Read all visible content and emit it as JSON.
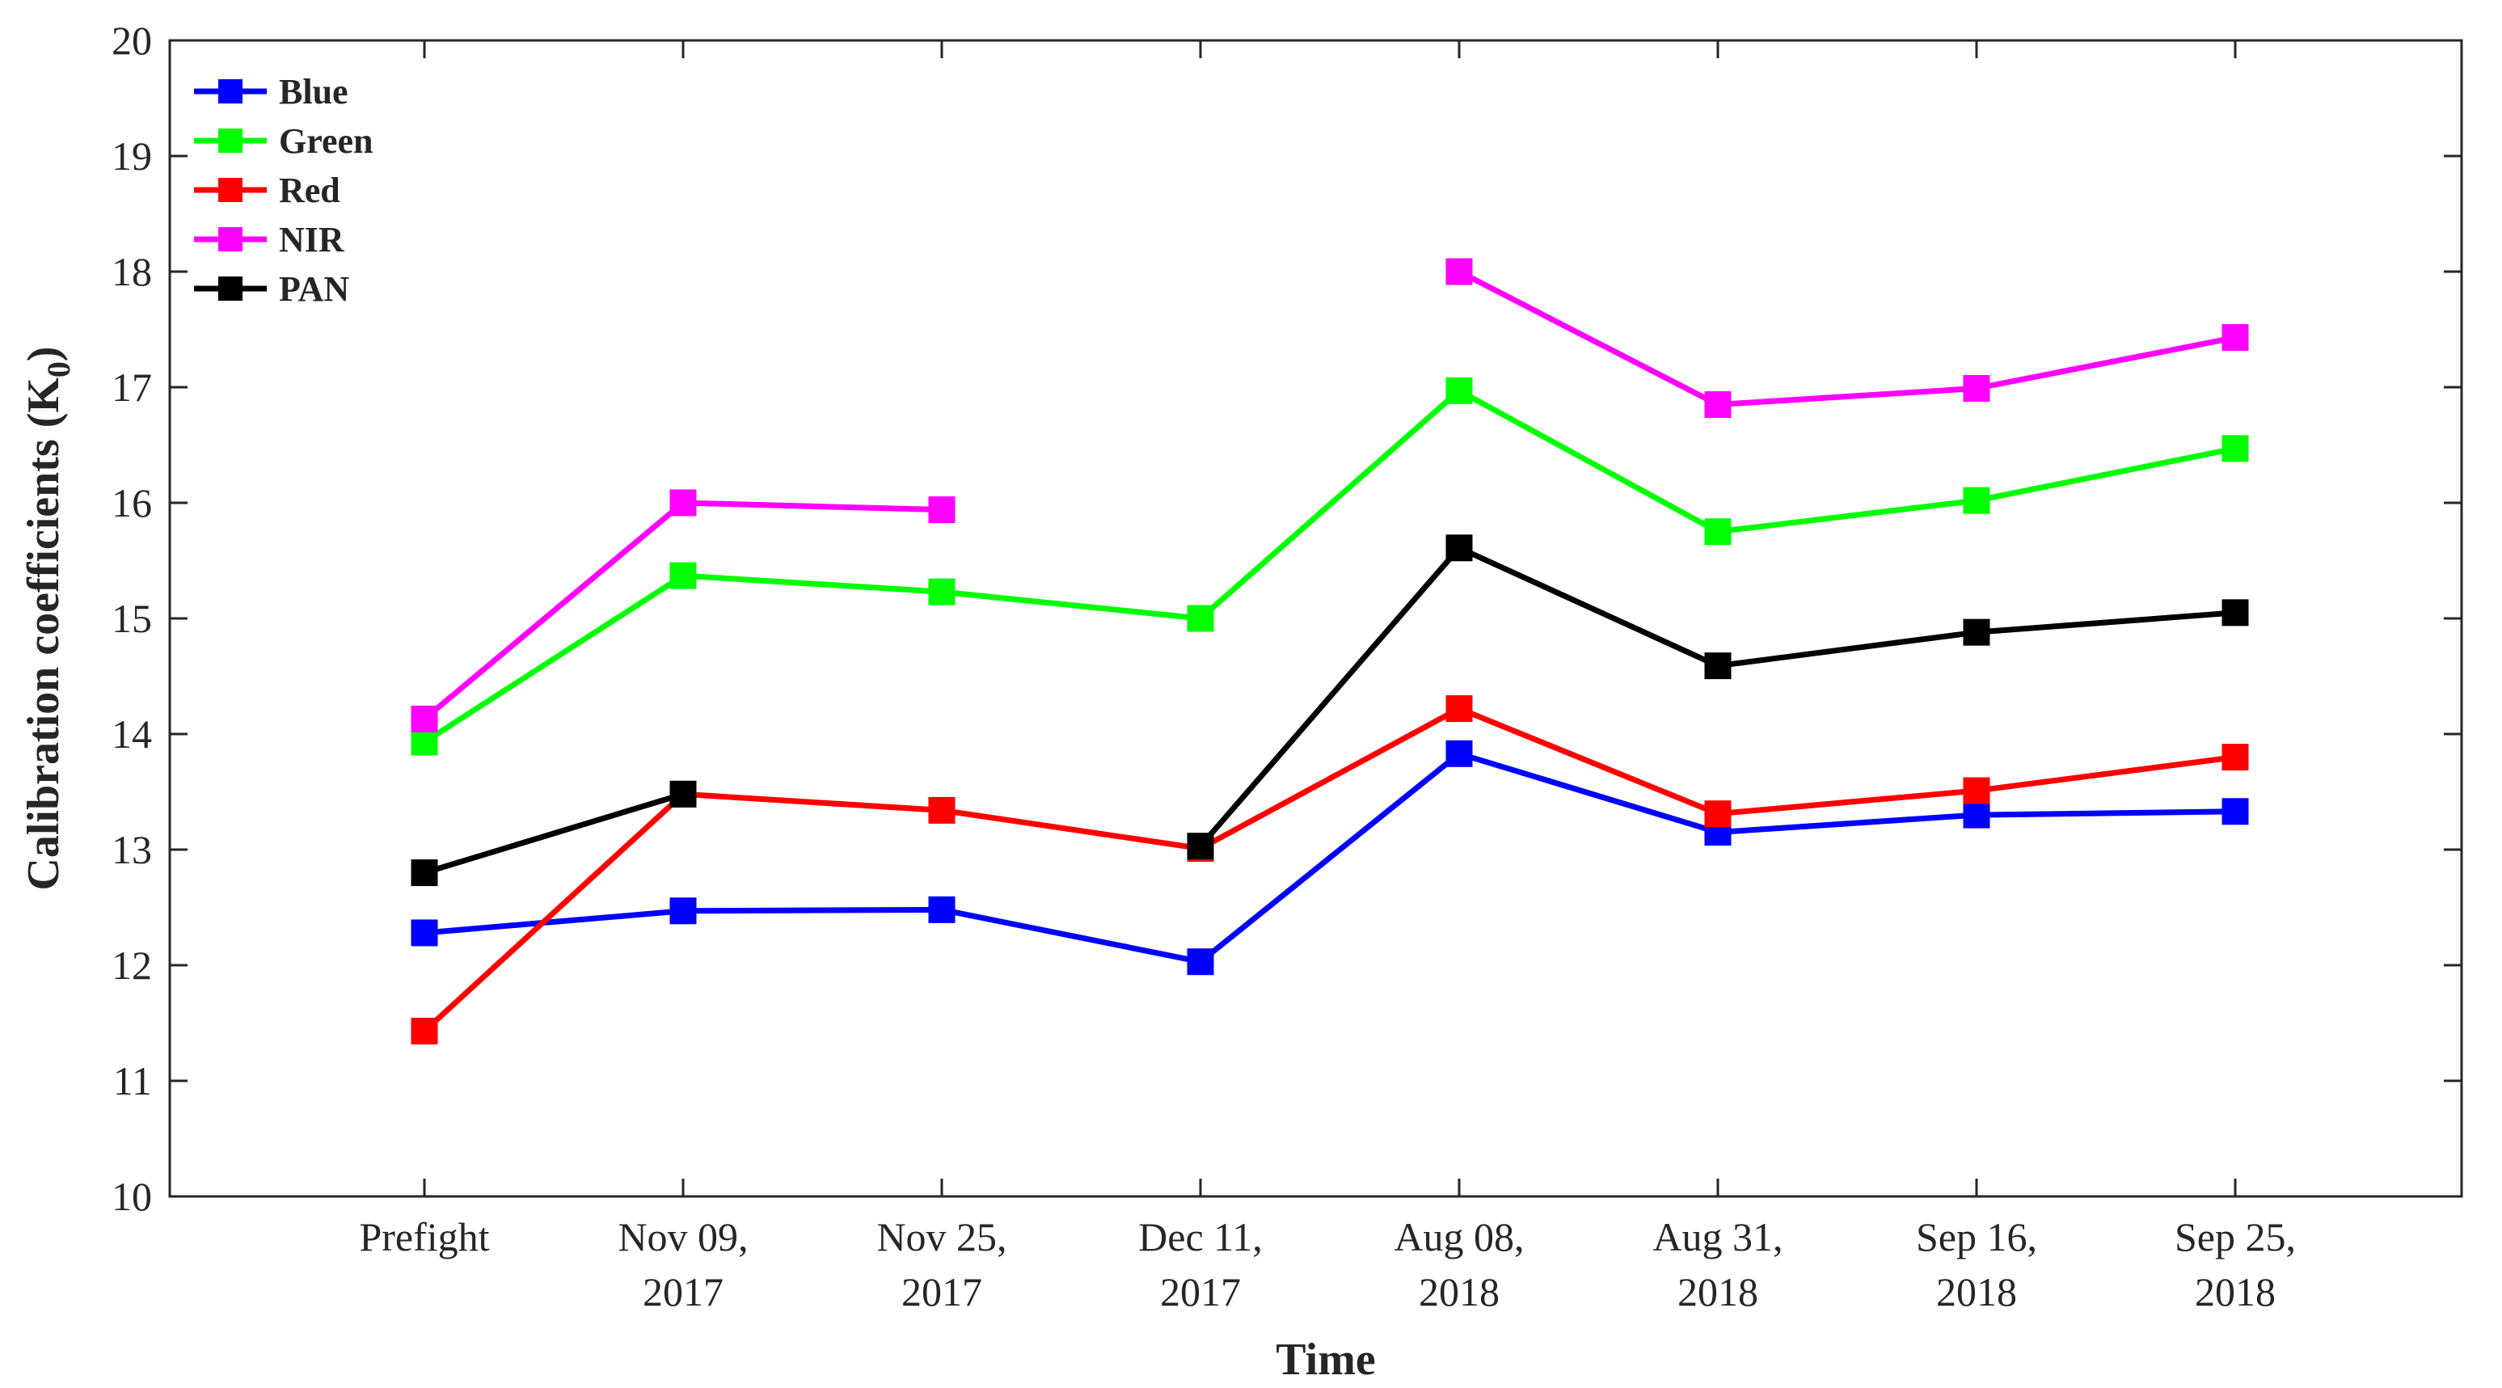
{
  "chart_data": {
    "type": "line",
    "title": "",
    "xlabel": "Time",
    "ylabel": "Calibration coefficients (K",
    "ylabel_subscript": "0",
    "ylabel_close": ")",
    "ylim": [
      10,
      20
    ],
    "yticks": [
      "10",
      "11",
      "12",
      "13",
      "14",
      "15",
      "16",
      "17",
      "18",
      "19",
      "20"
    ],
    "categories": [
      [
        "Prefight"
      ],
      [
        "Nov 09,",
        "2017"
      ],
      [
        "Nov 25,",
        "2017"
      ],
      [
        "Dec 11,",
        "2017"
      ],
      [
        "Aug 08,",
        "2018"
      ],
      [
        "Aug 31,",
        "2018"
      ],
      [
        "Sep 16,",
        "2018"
      ],
      [
        "Sep 25,",
        "2018"
      ]
    ],
    "legend_position": "top-left",
    "grid": false,
    "series": [
      {
        "name": "Blue",
        "color": "#0000ff",
        "values": [
          12.28,
          12.47,
          12.48,
          12.03,
          13.83,
          13.15,
          13.3,
          13.33
        ]
      },
      {
        "name": "Green",
        "color": "#00ff00",
        "values": [
          13.93,
          15.37,
          15.23,
          15.0,
          16.97,
          15.75,
          16.02,
          16.47
        ]
      },
      {
        "name": "Red",
        "color": "#ff0000",
        "values": [
          11.43,
          13.48,
          13.34,
          13.01,
          14.22,
          13.31,
          13.51,
          13.8
        ]
      },
      {
        "name": "NIR",
        "color": "#ff00ff",
        "values": [
          14.13,
          16.0,
          15.94,
          null,
          18.0,
          16.85,
          16.99,
          17.43
        ]
      },
      {
        "name": "PAN",
        "color": "#000000",
        "values": [
          12.8,
          13.48,
          null,
          13.03,
          15.61,
          14.59,
          14.88,
          15.05
        ]
      }
    ]
  }
}
